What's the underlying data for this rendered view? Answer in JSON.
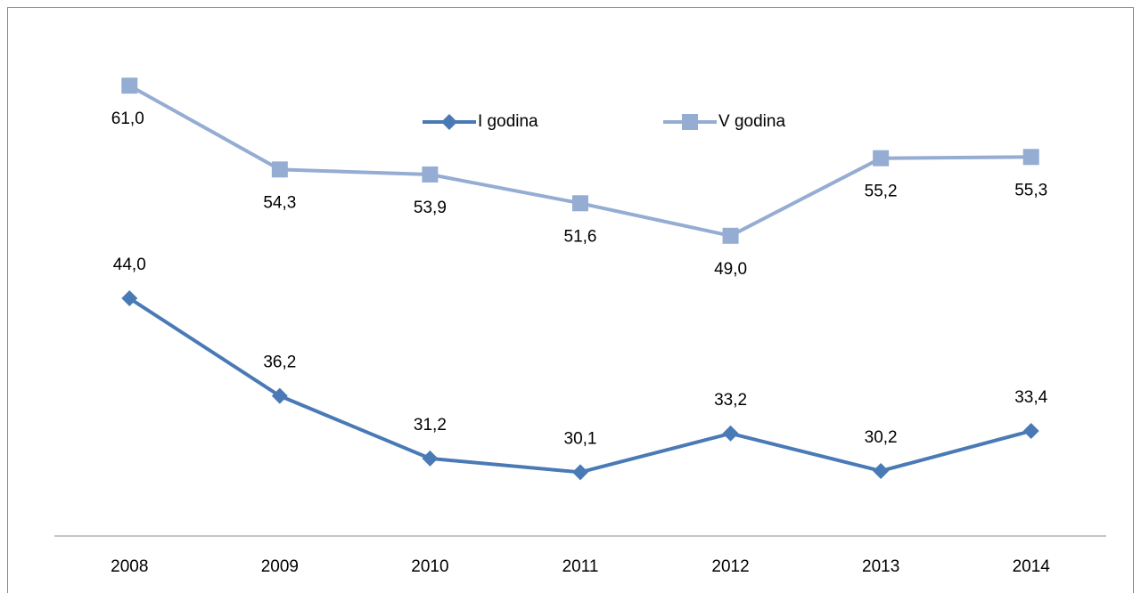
{
  "chart_data": {
    "type": "line",
    "categories": [
      "2008",
      "2009",
      "2010",
      "2011",
      "2012",
      "2013",
      "2014"
    ],
    "series": [
      {
        "name": "I godina",
        "color": "#4a7ab5",
        "marker": "diamond",
        "values": [
          44.0,
          36.2,
          31.2,
          30.1,
          33.2,
          30.2,
          33.4
        ],
        "value_labels": [
          "44,0",
          "36,2",
          "31,2",
          "30,1",
          "33,2",
          "30,2",
          "33,4"
        ]
      },
      {
        "name": "V godina",
        "color": "#95acd3",
        "marker": "square",
        "values": [
          61.0,
          54.3,
          53.9,
          51.6,
          49.0,
          55.2,
          55.3
        ],
        "value_labels": [
          "61,0",
          "54,3",
          "53,9",
          "51,6",
          "49,0",
          "55,2",
          "55,3"
        ]
      }
    ],
    "ylim": [
      25,
      65
    ],
    "legend": "top"
  }
}
